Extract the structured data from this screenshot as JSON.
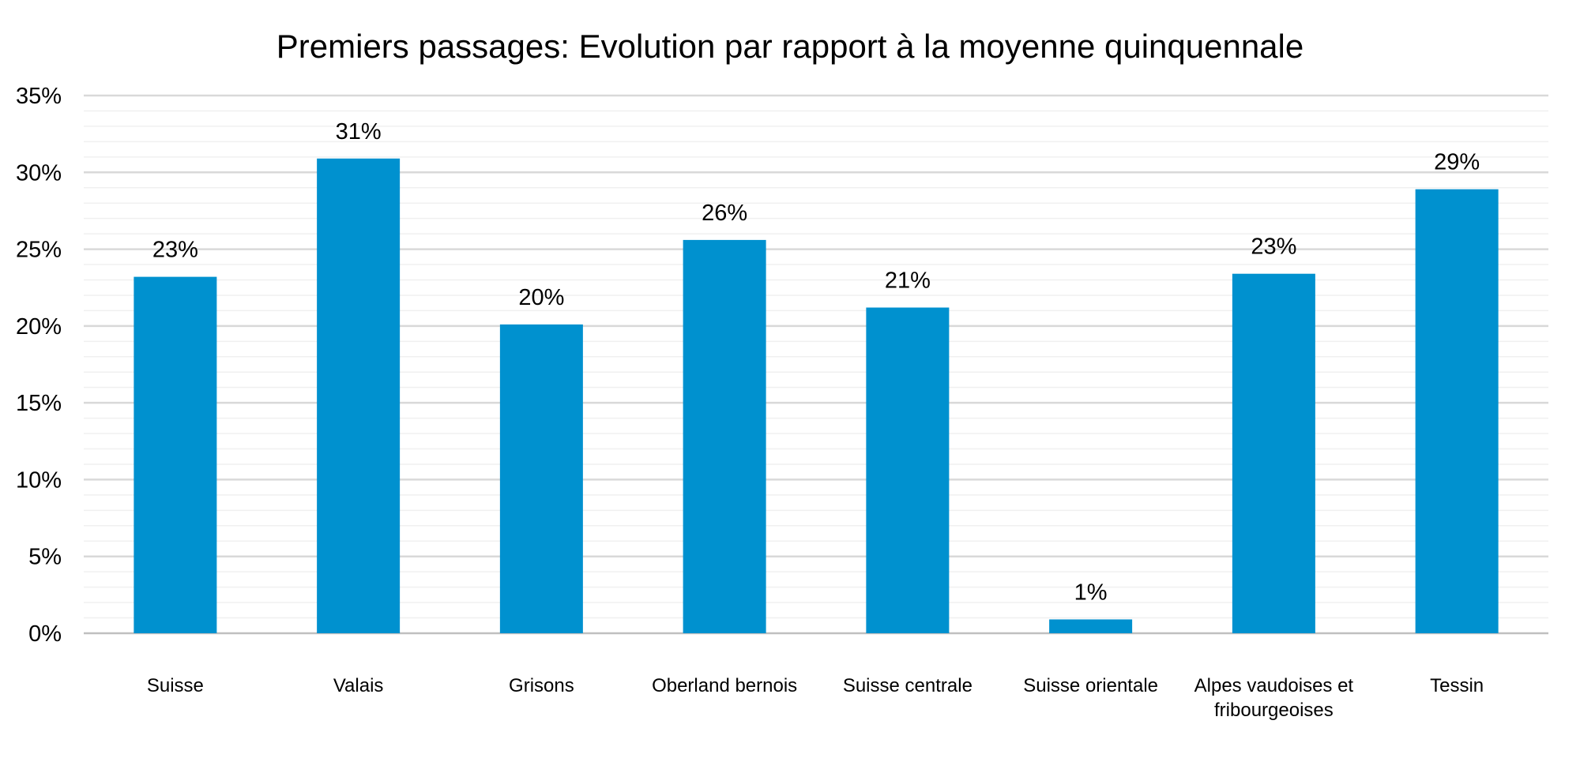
{
  "chart_data": {
    "type": "bar",
    "title": "Premiers passages: Evolution par rapport à la moyenne quinquennale",
    "xlabel": "",
    "ylabel": "",
    "categories": [
      [
        "Suisse"
      ],
      [
        "Valais"
      ],
      [
        "Grisons"
      ],
      [
        "Oberland bernois"
      ],
      [
        "Suisse centrale"
      ],
      [
        "Suisse orientale"
      ],
      [
        "Alpes vaudoises et",
        "fribourgeoises"
      ],
      [
        "Tessin"
      ]
    ],
    "values": [
      23.2,
      30.9,
      20.1,
      25.6,
      21.2,
      0.9,
      23.4,
      28.9
    ],
    "data_labels": [
      "23%",
      "31%",
      "20%",
      "26%",
      "21%",
      "1%",
      "23%",
      "29%"
    ],
    "ylim": [
      0,
      35
    ],
    "y_ticks": [
      0,
      5,
      10,
      15,
      20,
      25,
      30,
      35
    ],
    "y_tick_labels": [
      "0%",
      "5%",
      "10%",
      "15%",
      "20%",
      "25%",
      "30%",
      "35%"
    ],
    "minor_grid_step": 1,
    "grid": true,
    "legend": "none",
    "colors": {
      "bar": "#0091CF",
      "major_grid": "#D9D9D9",
      "minor_grid": "#F0F0F0",
      "axis": "#BFBFBF"
    }
  }
}
